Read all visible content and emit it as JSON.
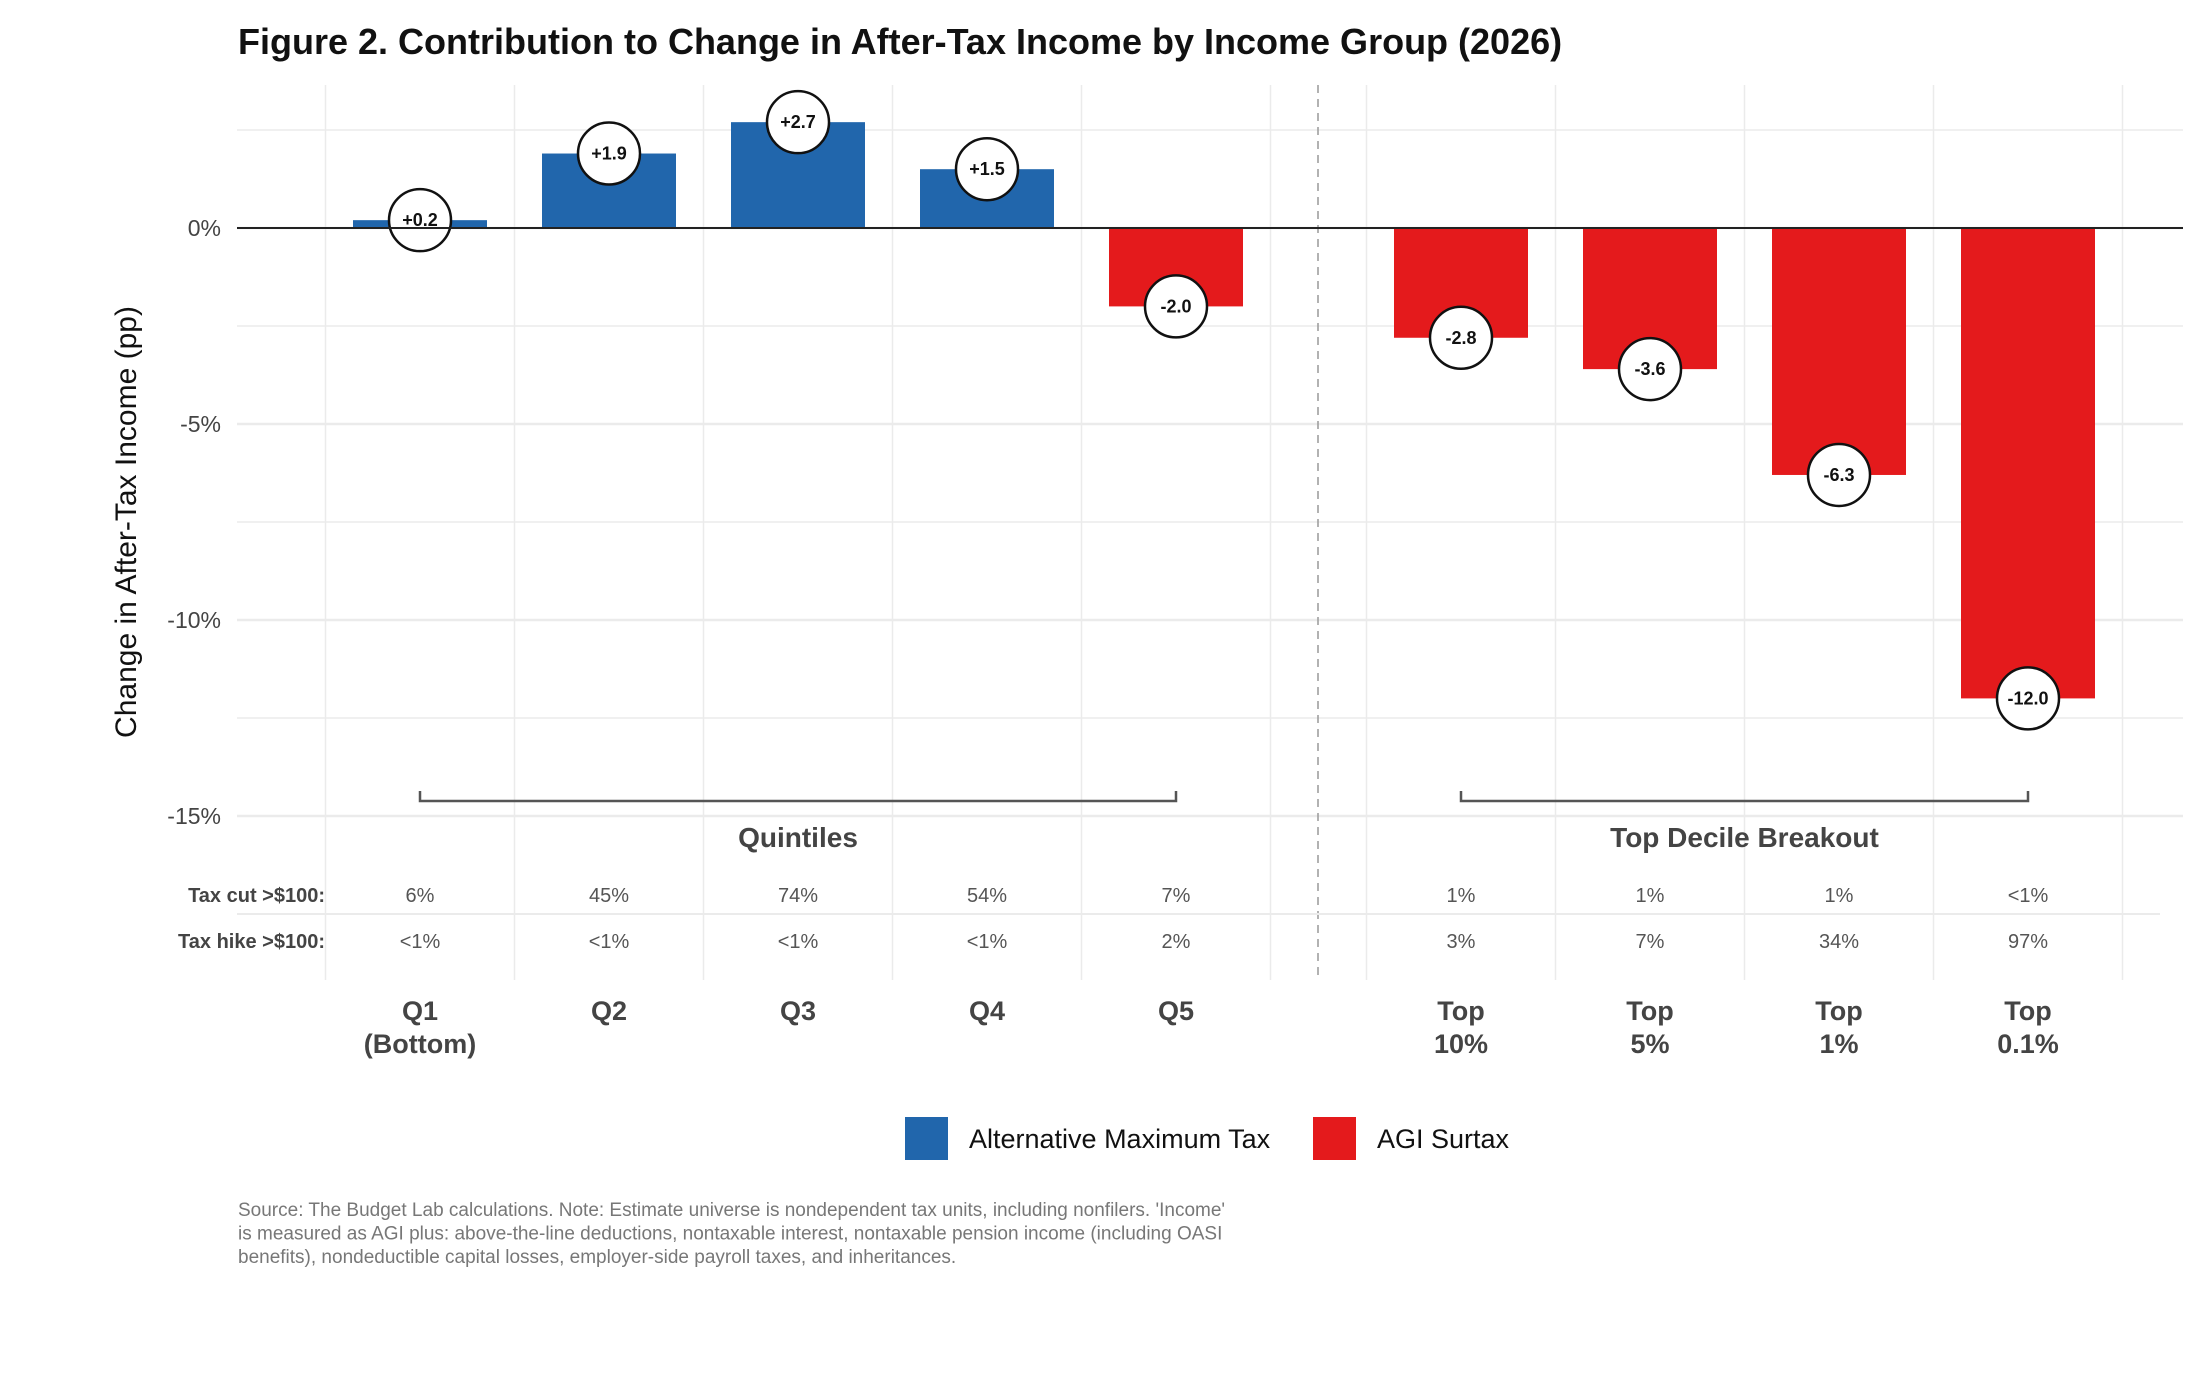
{
  "chart_data": {
    "type": "bar",
    "title": "Figure 2. Contribution to Change in After-Tax Income by Income Group (2026)",
    "xlabel": "",
    "ylabel": "Change in After-Tax Income (pp)",
    "ylim": [
      -15,
      3.5
    ],
    "yticks": [
      0,
      -5,
      -10,
      -15
    ],
    "ytick_labels": [
      "0%",
      "-5%",
      "-10%",
      "-15%"
    ],
    "grid": true,
    "categories": [
      {
        "label": [
          "Q1",
          "(Bottom)"
        ],
        "value": 0.2,
        "data_label": "+0.2",
        "series": "Alternative Maximum Tax",
        "tax_cut": "6%",
        "tax_hike": "<1%"
      },
      {
        "label": [
          "Q2"
        ],
        "value": 1.9,
        "data_label": "+1.9",
        "series": "Alternative Maximum Tax",
        "tax_cut": "45%",
        "tax_hike": "<1%"
      },
      {
        "label": [
          "Q3"
        ],
        "value": 2.7,
        "data_label": "+2.7",
        "series": "Alternative Maximum Tax",
        "tax_cut": "74%",
        "tax_hike": "<1%"
      },
      {
        "label": [
          "Q4"
        ],
        "value": 1.5,
        "data_label": "+1.5",
        "series": "Alternative Maximum Tax",
        "tax_cut": "54%",
        "tax_hike": "<1%"
      },
      {
        "label": [
          "Q5"
        ],
        "value": -2.0,
        "data_label": "-2.0",
        "series": "AGI Surtax",
        "tax_cut": "7%",
        "tax_hike": "2%"
      },
      {
        "label": [
          "Top",
          "10%"
        ],
        "value": -2.8,
        "data_label": "-2.8",
        "series": "AGI Surtax",
        "tax_cut": "1%",
        "tax_hike": "3%"
      },
      {
        "label": [
          "Top",
          "5%"
        ],
        "value": -3.6,
        "data_label": "-3.6",
        "series": "AGI Surtax",
        "tax_cut": "1%",
        "tax_hike": "7%"
      },
      {
        "label": [
          "Top",
          "1%"
        ],
        "value": -6.3,
        "data_label": "-6.3",
        "series": "AGI Surtax",
        "tax_cut": "1%",
        "tax_hike": "34%"
      },
      {
        "label": [
          "Top",
          "0.1%"
        ],
        "value": -12.0,
        "data_label": "-12.0",
        "series": "AGI Surtax",
        "tax_cut": "<1%",
        "tax_hike": "97%"
      }
    ],
    "groups": [
      {
        "label": "Quintiles",
        "from": 0,
        "to": 4
      },
      {
        "label": "Top Decile Breakout",
        "from": 5,
        "to": 8
      }
    ],
    "row_labels": {
      "tax_cut": "Tax cut >$100:",
      "tax_hike": "Tax hike >$100:"
    },
    "legend": {
      "placement": "bottom",
      "entries": [
        {
          "name": "Alternative Maximum Tax",
          "color": "#2166ac"
        },
        {
          "name": "AGI Surtax",
          "color": "#e41a1c"
        }
      ]
    },
    "source_note": [
      "Source: The Budget Lab calculations. Note: Estimate universe is nondependent tax units, including nonfilers. 'Income'",
      "is measured as AGI plus: above-the-line deductions, nontaxable interest, nontaxable pension income (including OASI",
      "benefits), nondeductible capital losses, employer-side payroll taxes, and inheritances."
    ]
  }
}
